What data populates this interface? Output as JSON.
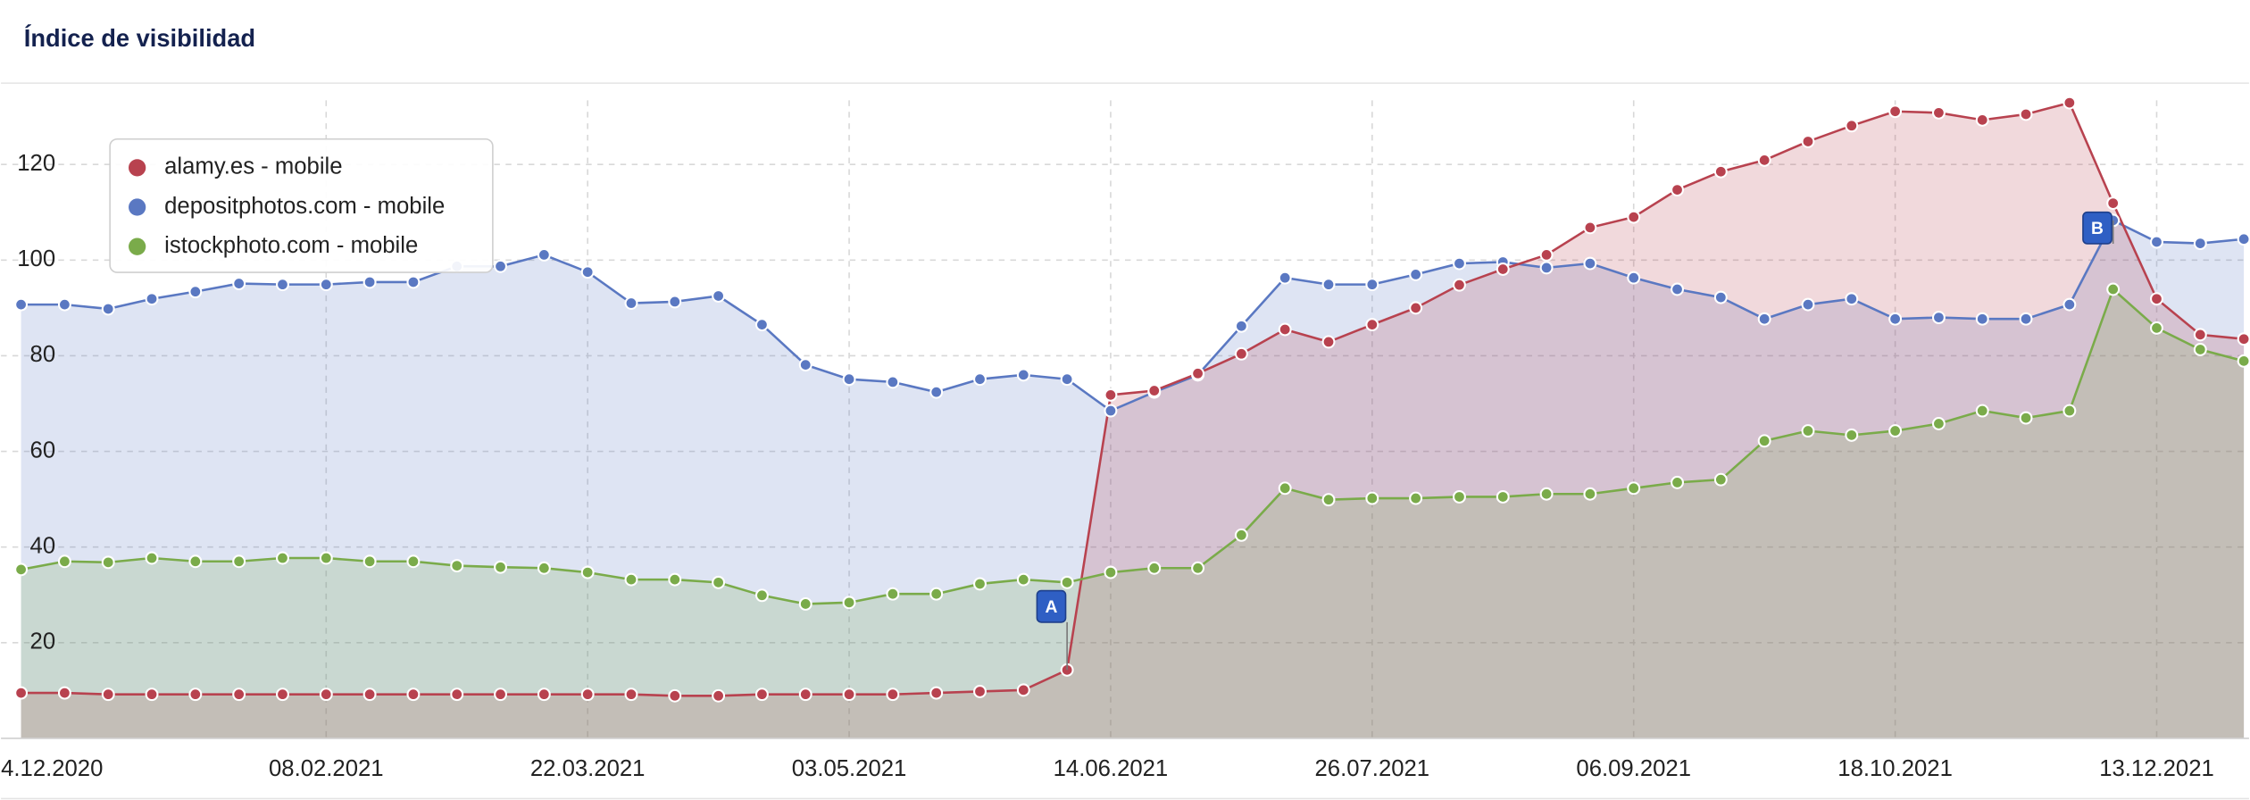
{
  "chart_data": {
    "type": "area",
    "title": "Índice de visibilidad",
    "categories": [
      "4.12.2020",
      null,
      null,
      null,
      null,
      null,
      null,
      "08.02.2021",
      null,
      null,
      null,
      null,
      null,
      "22.03.2021",
      null,
      null,
      null,
      null,
      null,
      "03.05.2021",
      null,
      null,
      null,
      null,
      null,
      "14.06.2021",
      null,
      null,
      null,
      null,
      null,
      "26.07.2021",
      null,
      null,
      null,
      null,
      null,
      "06.09.2021",
      null,
      null,
      null,
      null,
      null,
      "18.10.2021",
      null,
      null,
      null,
      null,
      null,
      "13.12.2021",
      null,
      null
    ],
    "series": [
      {
        "name": "depositphotos.com - mobile",
        "color": "#5a78c2",
        "values": [
          90.7,
          90.7,
          89.8,
          91.9,
          93.4,
          95.1,
          94.9,
          94.9,
          95.4,
          95.4,
          98.7,
          98.7,
          101.1,
          97.5,
          91,
          91.3,
          92.5,
          86.5,
          78.1,
          75.1,
          74.5,
          72.4,
          75.1,
          76,
          75.1,
          68.5,
          72.4,
          76,
          86.2,
          96.3,
          94.9,
          94.9,
          97,
          99.3,
          99.6,
          98.4,
          99.3,
          96.3,
          93.9,
          92.2,
          87.7,
          90.7,
          91.9,
          87.7,
          88,
          87.7,
          87.7,
          90.7,
          108.3,
          103.8,
          103.5,
          104.4
        ]
      },
      {
        "name": "alamy.es - mobile",
        "color": "#b8424f",
        "values": [
          9.5,
          9.5,
          9.2,
          9.2,
          9.2,
          9.2,
          9.2,
          9.2,
          9.2,
          9.2,
          9.2,
          9.2,
          9.2,
          9.2,
          9.2,
          8.9,
          8.9,
          9.2,
          9.2,
          9.2,
          9.2,
          9.5,
          9.8,
          10.1,
          14.3,
          71.8,
          72.7,
          76.3,
          80.4,
          85.5,
          82.9,
          86.5,
          90,
          94.8,
          98.1,
          101.1,
          106.8,
          109,
          114.7,
          118.5,
          120.9,
          124.8,
          128.1,
          131.1,
          130.8,
          129.3,
          130.5,
          132.9,
          111.9,
          91.9,
          84.4,
          83.5
        ]
      },
      {
        "name": "istockphoto.com - mobile",
        "color": "#7aab4a",
        "values": [
          35.3,
          37,
          36.8,
          37.7,
          37,
          37,
          37.7,
          37.7,
          37,
          37,
          36.1,
          35.8,
          35.6,
          34.7,
          33.2,
          33.2,
          32.6,
          29.9,
          28.1,
          28.4,
          30.2,
          30.2,
          32.3,
          33.2,
          32.6,
          34.7,
          35.6,
          35.6,
          42.5,
          52.3,
          49.9,
          50.2,
          50.2,
          50.5,
          50.5,
          51.1,
          51.1,
          52.3,
          53.5,
          54.1,
          62.2,
          64.3,
          63.4,
          64.3,
          65.8,
          68.5,
          67,
          68.5,
          93.9,
          85.8,
          81.3,
          78.9
        ]
      }
    ],
    "legend_order": [
      1,
      0,
      2
    ],
    "legend": "upper left",
    "ylim": [
      0,
      137
    ],
    "yticks": [
      20,
      40,
      60,
      80,
      100,
      120
    ],
    "grid": true,
    "annotations": [
      {
        "label": "A",
        "index": 24,
        "series": 1
      },
      {
        "label": "B",
        "index": 48,
        "series": 0
      }
    ]
  }
}
